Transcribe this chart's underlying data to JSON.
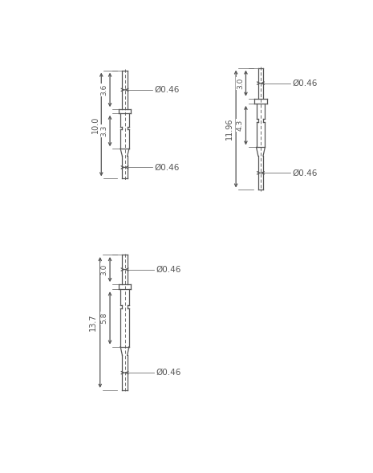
{
  "line_color": "#555555",
  "lw": 0.9,
  "connectors": [
    {
      "label": "c1",
      "total_label": "10.0",
      "top_label": "3.6",
      "body_label": "3.3",
      "top_diam_label": "Ø0.46",
      "bot_diam_label": "Ø0.46"
    },
    {
      "label": "c2",
      "total_label": "11.96",
      "top_label": "3.0",
      "body_label": "4.3",
      "top_diam_label": "Ø0.46",
      "bot_diam_label": "Ø0.46"
    },
    {
      "label": "c3",
      "total_label": "13.7",
      "top_label": "3.0",
      "body_label": "5.8",
      "top_diam_label": "Ø0.46",
      "bot_diam_label": "Ø0.46"
    }
  ]
}
